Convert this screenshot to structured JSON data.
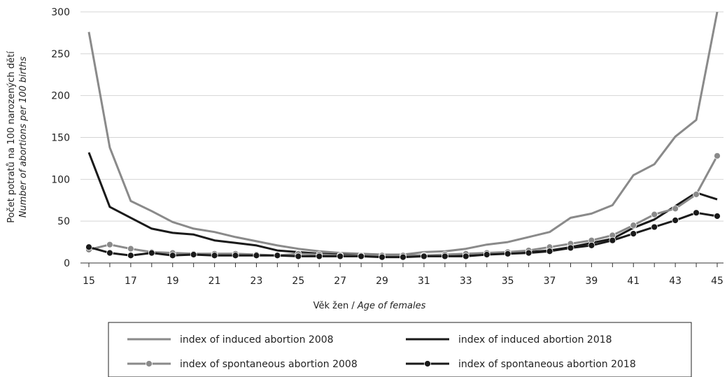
{
  "chart_data": {
    "type": "line",
    "title": "",
    "xlabel": "Věk žen / ",
    "xlabel_italic": "Age of females",
    "ylabel_line1": "Počet potratů na 100 narozených dětí",
    "ylabel_line2": "Number of abortions per 100 births",
    "x": [
      15,
      16,
      17,
      18,
      19,
      20,
      21,
      22,
      23,
      24,
      25,
      26,
      27,
      28,
      29,
      30,
      31,
      32,
      33,
      34,
      35,
      36,
      37,
      38,
      39,
      40,
      41,
      42,
      43,
      44,
      45
    ],
    "x_tick_labels": [
      "15",
      "17",
      "19",
      "21",
      "23",
      "25",
      "27",
      "29",
      "31",
      "33",
      "35",
      "37",
      "39",
      "41",
      "43",
      "45"
    ],
    "y_tick_labels": [
      "0",
      "50",
      "100",
      "150",
      "200",
      "250",
      "300"
    ],
    "xlim": [
      15,
      45
    ],
    "ylim": [
      0,
      300
    ],
    "grid": "horizontal",
    "legend_position": "bottom",
    "series": [
      {
        "name": "index of induced abortion 2008",
        "color": "#8a8a8a",
        "markers": false,
        "values": [
          276,
          138,
          74,
          62,
          49,
          41,
          37,
          31,
          26,
          21,
          17,
          14,
          12,
          11,
          10,
          10,
          13,
          14,
          17,
          22,
          25,
          31,
          37,
          54,
          59,
          69,
          105,
          118,
          151,
          171,
          300
        ]
      },
      {
        "name": "index of induced abortion 2018",
        "color": "#1a1a1a",
        "markers": false,
        "values": [
          132,
          67,
          54,
          41,
          36,
          34,
          27,
          24,
          21,
          15,
          13,
          11,
          10,
          9,
          9,
          9,
          9,
          9,
          10,
          11,
          12,
          13,
          15,
          19,
          24,
          29,
          42,
          52,
          68,
          84,
          76
        ]
      },
      {
        "name": "index of spontaneous abortion 2008",
        "color": "#8a8a8a",
        "markers": true,
        "values": [
          16,
          22,
          17,
          13,
          12,
          11,
          11,
          11,
          10,
          9,
          11,
          10,
          9,
          9,
          9,
          9,
          9,
          10,
          11,
          12,
          13,
          15,
          19,
          23,
          27,
          33,
          45,
          58,
          65,
          82,
          128
        ]
      },
      {
        "name": "index of spontaneous abortion 2018",
        "color": "#1a1a1a",
        "markers": true,
        "values": [
          19,
          12,
          9,
          12,
          9,
          10,
          9,
          9,
          9,
          9,
          8,
          8,
          8,
          8,
          7,
          7,
          8,
          8,
          8,
          10,
          11,
          12,
          14,
          18,
          21,
          27,
          35,
          43,
          51,
          60,
          56
        ]
      }
    ]
  }
}
